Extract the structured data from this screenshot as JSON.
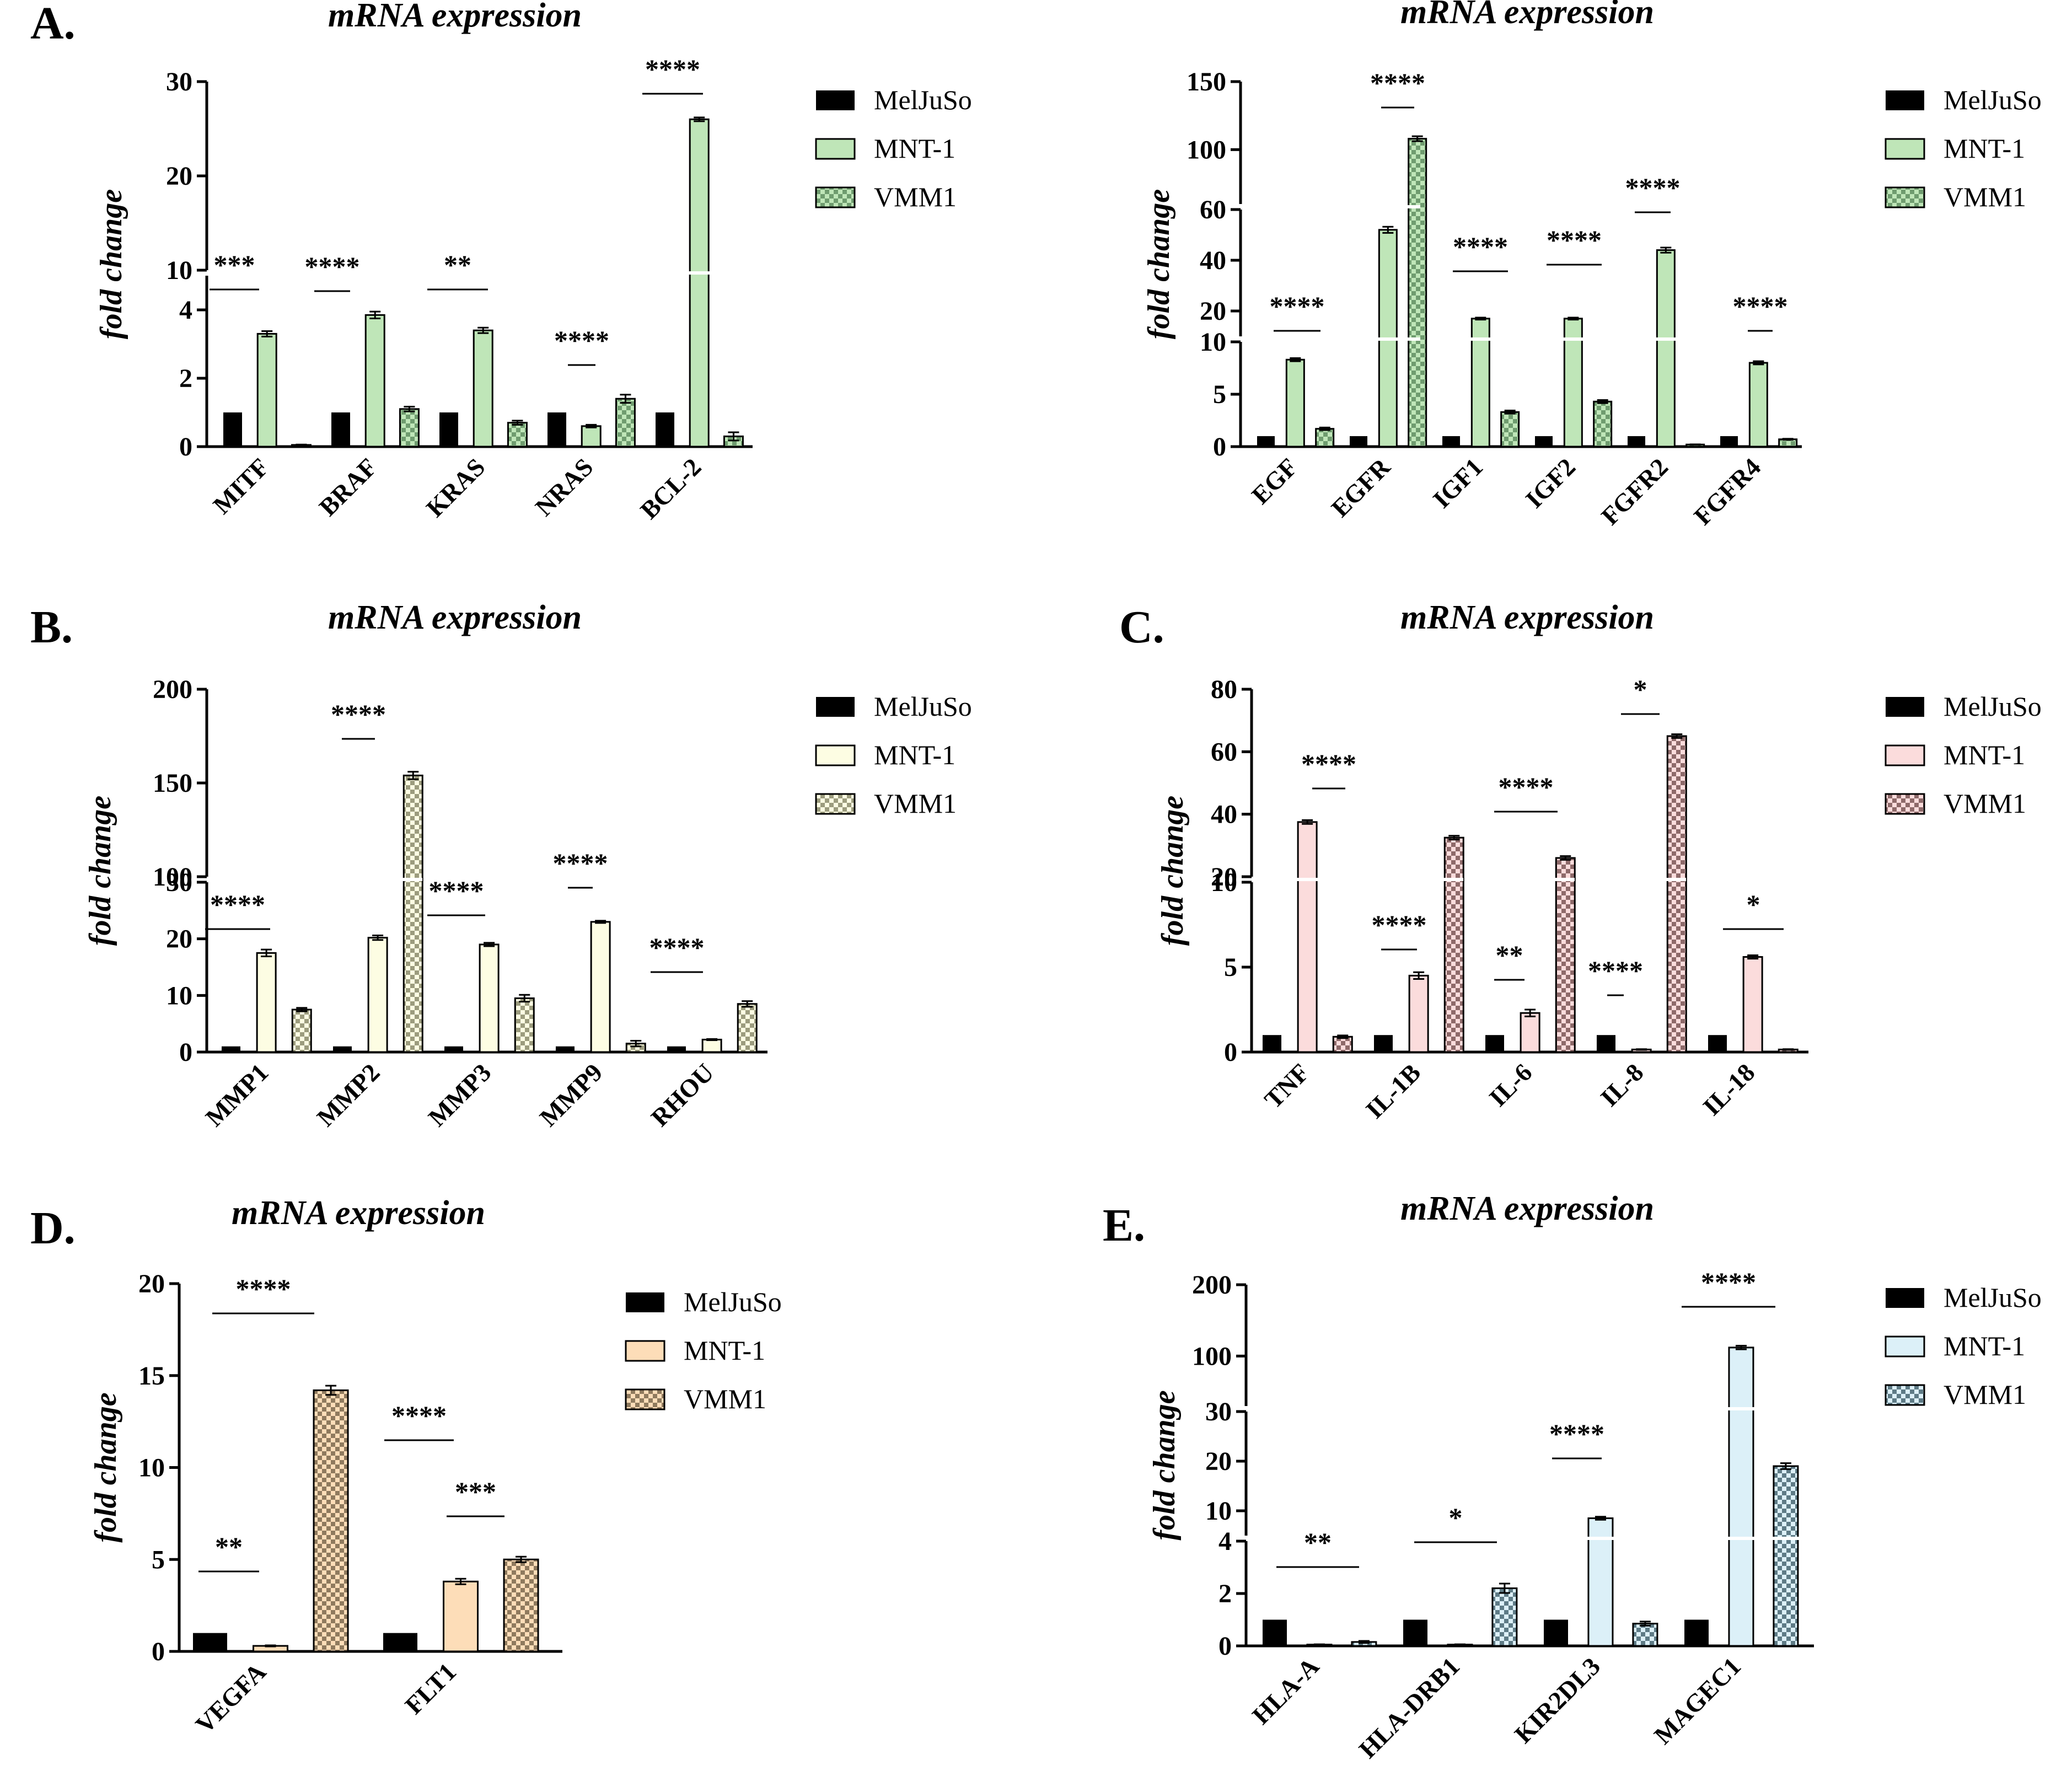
{
  "figure": {
    "ylabel_default": "fold change"
  },
  "colors": {
    "meljuso": "#000000",
    "green": "#bfe6b8",
    "green_dot": "#6f9c6f",
    "yellow": "#fdfde3",
    "yellow_dot": "#9c9c7e",
    "pink": "#fbdcdc",
    "pink_dot": "#8e6a6a",
    "peach": "#fdddb8",
    "peach_dot": "#8f7a5e",
    "blue": "#dcf0f8",
    "blue_dot": "#5e7b86"
  },
  "chart_data": [
    {
      "id": "A1",
      "panel_label": "A.",
      "type": "bar",
      "title": "mRNA expression",
      "ylabel": "fold change",
      "categories": [
        "MITF",
        "BRAF",
        "KRAS",
        "NRAS",
        "BCL-2"
      ],
      "series": [
        {
          "name": "MelJuSo",
          "values": [
            1,
            1,
            1,
            1,
            1
          ]
        },
        {
          "name": "MNT-1",
          "values": [
            3.3,
            3.85,
            3.4,
            0.6,
            26.0
          ]
        },
        {
          "name": "VMM1",
          "values": [
            0.05,
            1.1,
            0.7,
            1.4,
            0.3
          ]
        }
      ],
      "errors": [
        [
          0,
          0,
          0,
          0,
          0
        ],
        [
          0.08,
          0.1,
          0.08,
          0.04,
          0.2
        ],
        [
          0.01,
          0.07,
          0.06,
          0.12,
          0.12
        ]
      ],
      "y_segments": [
        {
          "range": [
            0,
            5
          ],
          "ticks": [
            0,
            2,
            4
          ]
        },
        {
          "range": [
            10,
            30
          ],
          "ticks": [
            10,
            20,
            30
          ]
        }
      ],
      "significance": [
        {
          "label": "***"
        },
        {
          "label": "****"
        },
        {
          "label": "**"
        },
        {
          "label": "****"
        },
        {
          "label": "****"
        }
      ],
      "legend": [
        "MelJuSo",
        "MNT-1",
        "VMM1"
      ],
      "theme": "green"
    },
    {
      "id": "A2",
      "panel_label": "",
      "type": "bar",
      "title": "mRNA expression",
      "ylabel": "fold change",
      "categories": [
        "EGF",
        "EGFR",
        "IGF1",
        "IGF2",
        "FGFR2",
        "FGFR4"
      ],
      "series": [
        {
          "name": "MelJuSo",
          "values": [
            1,
            1,
            1,
            1,
            1,
            1
          ]
        },
        {
          "name": "MNT-1",
          "values": [
            8.3,
            52,
            17,
            17,
            44,
            8.0
          ]
        },
        {
          "name": "VMM1",
          "values": [
            1.7,
            108,
            3.3,
            4.3,
            0.2,
            0.7
          ]
        }
      ],
      "errors": [
        [
          0,
          0,
          0,
          0,
          0,
          0
        ],
        [
          0.15,
          1.2,
          0.4,
          0.4,
          1.0,
          0.15
        ],
        [
          0.12,
          1.8,
          0.15,
          0.15,
          0.02,
          0.05
        ]
      ],
      "y_segments": [
        {
          "range": [
            0,
            10
          ],
          "ticks": [
            0,
            5,
            10
          ]
        },
        {
          "range": [
            10,
            60
          ],
          "ticks": [
            20,
            40,
            60
          ]
        },
        {
          "range": [
            60,
            150
          ],
          "ticks": [
            100,
            150
          ]
        }
      ],
      "significance": [
        {
          "label": "****"
        },
        {
          "label": "****"
        },
        {
          "label": "****"
        },
        {
          "label": "****"
        },
        {
          "label": "****"
        },
        {
          "label": "****"
        }
      ],
      "legend": [
        "MelJuSo",
        "MNT-1",
        "VMM1"
      ],
      "theme": "green"
    },
    {
      "id": "B",
      "panel_label": "B.",
      "type": "bar",
      "title": "mRNA expression",
      "ylabel": "fold change",
      "categories": [
        "MMP1",
        "MMP2",
        "MMP3",
        "MMP9",
        "RHOU"
      ],
      "series": [
        {
          "name": "MelJuSo",
          "values": [
            1,
            1,
            1,
            1,
            1
          ]
        },
        {
          "name": "MNT-1",
          "values": [
            17.5,
            20.2,
            19.0,
            23.0,
            2.2
          ]
        },
        {
          "name": "VMM1",
          "values": [
            7.5,
            154,
            9.5,
            1.5,
            8.5
          ]
        }
      ],
      "errors": [
        [
          0,
          0,
          0,
          0,
          0
        ],
        [
          0.6,
          0.4,
          0.3,
          0.2,
          0.1
        ],
        [
          0.3,
          2.0,
          0.6,
          0.5,
          0.5
        ]
      ],
      "y_segments": [
        {
          "range": [
            0,
            30
          ],
          "ticks": [
            0,
            10,
            20,
            30
          ]
        },
        {
          "range": [
            100,
            200
          ],
          "ticks": [
            100,
            150,
            200
          ]
        }
      ],
      "significance": [
        {
          "label": "****"
        },
        {
          "label": "****"
        },
        {
          "label": "****"
        },
        {
          "label": "****"
        },
        {
          "label": "****"
        }
      ],
      "legend": [
        "MelJuSo",
        "MNT-1",
        "VMM1"
      ],
      "theme": "yellow"
    },
    {
      "id": "C",
      "panel_label": "C.",
      "type": "bar",
      "title": "mRNA expression",
      "ylabel": "fold change",
      "categories": [
        "TNF",
        "IL-1B",
        "IL-6",
        "IL-8",
        "IL-18"
      ],
      "series": [
        {
          "name": "MelJuSo",
          "values": [
            1,
            1,
            1,
            1,
            1
          ]
        },
        {
          "name": "MNT-1",
          "values": [
            37.5,
            4.5,
            2.3,
            0.15,
            5.6
          ]
        },
        {
          "name": "VMM1",
          "values": [
            0.9,
            32.5,
            26,
            65,
            0.15
          ]
        }
      ],
      "errors": [
        [
          0,
          0,
          0,
          0,
          0
        ],
        [
          0.6,
          0.2,
          0.2,
          0.02,
          0.1
        ],
        [
          0.08,
          0.6,
          0.6,
          0.6,
          0.02
        ]
      ],
      "y_segments": [
        {
          "range": [
            0,
            10
          ],
          "ticks": [
            0,
            5,
            10
          ]
        },
        {
          "range": [
            20,
            80
          ],
          "ticks": [
            20,
            40,
            60,
            80
          ]
        }
      ],
      "significance": [
        {
          "label": "****"
        },
        {
          "label": "****"
        },
        {
          "label": "****"
        },
        {
          "label": "**"
        },
        {
          "label": "****"
        },
        {
          "label": "*"
        },
        {
          "label": "*"
        }
      ],
      "legend": [
        "MelJuSo",
        "MNT-1",
        "VMM1"
      ],
      "theme": "pink"
    },
    {
      "id": "D",
      "panel_label": "D.",
      "type": "bar",
      "title": "mRNA expression",
      "ylabel": "fold change",
      "categories": [
        "VEGFA",
        "FLT1"
      ],
      "series": [
        {
          "name": "MelJuSo",
          "values": [
            1,
            1
          ]
        },
        {
          "name": "MNT-1",
          "values": [
            0.3,
            3.8
          ]
        },
        {
          "name": "VMM1",
          "values": [
            14.2,
            5.0
          ]
        }
      ],
      "errors": [
        [
          0,
          0
        ],
        [
          0.03,
          0.15
        ],
        [
          0.25,
          0.15
        ]
      ],
      "y_segments": [
        {
          "range": [
            0,
            20
          ],
          "ticks": [
            0,
            5,
            10,
            15,
            20
          ]
        }
      ],
      "significance": [
        {
          "label": "**"
        },
        {
          "label": "****"
        },
        {
          "label": "****"
        },
        {
          "label": "***"
        }
      ],
      "legend": [
        "MelJuSo",
        "MNT-1",
        "VMM1"
      ],
      "theme": "peach"
    },
    {
      "id": "E",
      "panel_label": "E.",
      "type": "bar",
      "title": "mRNA expression",
      "ylabel": "fold change",
      "categories": [
        "HLA-A",
        "HLA-DRB1",
        "KIR2DL3",
        "MAGEC1"
      ],
      "series": [
        {
          "name": "MelJuSo",
          "values": [
            1,
            1,
            1,
            1
          ]
        },
        {
          "name": "MNT-1",
          "values": [
            0.05,
            0.05,
            8.5,
            112
          ]
        },
        {
          "name": "VMM1",
          "values": [
            0.15,
            2.2,
            0.85,
            19
          ]
        }
      ],
      "errors": [
        [
          0,
          0,
          0,
          0
        ],
        [
          0.01,
          0.01,
          0.3,
          2.5
        ],
        [
          0.04,
          0.18,
          0.08,
          0.6
        ]
      ],
      "y_segments": [
        {
          "range": [
            0,
            4
          ],
          "ticks": [
            0,
            2,
            4
          ]
        },
        {
          "range": [
            5,
            30
          ],
          "ticks": [
            10,
            20,
            30
          ]
        },
        {
          "range": [
            30,
            200
          ],
          "ticks": [
            100,
            200
          ]
        }
      ],
      "significance": [
        {
          "label": "**"
        },
        {
          "label": "*"
        },
        {
          "label": "****"
        },
        {
          "label": "****"
        }
      ],
      "legend": [
        "MelJuSo",
        "MNT-1",
        "VMM1"
      ],
      "theme": "blue"
    }
  ]
}
